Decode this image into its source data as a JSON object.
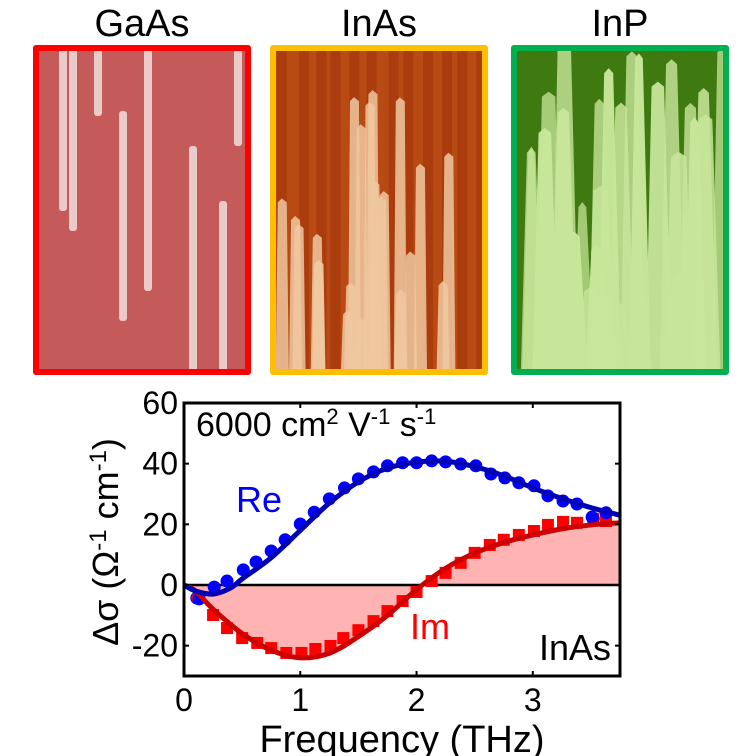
{
  "panels": [
    {
      "label": "GaAs",
      "border_color": "#ff0000",
      "bg_color": "#c45a5a",
      "wire_color": "#f2dede"
    },
    {
      "label": "InAs",
      "border_color": "#ffbf00",
      "bg_color": "#b84a14",
      "wire_color": "#f0c8a0"
    },
    {
      "label": "InP",
      "border_color": "#00b050",
      "bg_color": "#3f7a10",
      "wire_color": "#c8e69a"
    }
  ],
  "chart_data": {
    "type": "line",
    "title": "",
    "xlabel": "Frequency (THz)",
    "ylabel": "Δσ (Ω⁻¹ cm⁻¹)",
    "ylabel_parts": {
      "base": "Δσ (Ω",
      "sup1": "-1",
      "mid": " cm",
      "sup2": "-1",
      "end": ")"
    },
    "xlim": [
      0,
      3.75
    ],
    "ylim": [
      -30,
      60
    ],
    "xticks": [
      0,
      1,
      2,
      3
    ],
    "yticks": [
      -20,
      0,
      20,
      40,
      60
    ],
    "grid": false,
    "annotations": {
      "mobility": {
        "base": "6000 cm",
        "sup1": "2",
        "mid": " V",
        "sup2": "-1",
        "mid2": " s",
        "sup3": "-1"
      },
      "re_label": "Re",
      "im_label": "Im",
      "material_label": "InAs"
    },
    "colors": {
      "re_points": "#0000ff",
      "re_fit": "#0000b4",
      "im_points": "#ff0000",
      "im_fit": "#cc0000",
      "im_fill": "#ffb3b3"
    },
    "series": [
      {
        "name": "Re (data)",
        "marker": "circle",
        "x": [
          0.13,
          0.26,
          0.37,
          0.51,
          0.62,
          0.75,
          0.87,
          1.0,
          1.12,
          1.25,
          1.38,
          1.5,
          1.63,
          1.75,
          1.88,
          2.0,
          2.13,
          2.25,
          2.38,
          2.51,
          2.64,
          2.76,
          2.88,
          3.01,
          3.13,
          3.26,
          3.38,
          3.51,
          3.63
        ],
        "y": [
          -4.6,
          -0.7,
          1.3,
          5.0,
          7.6,
          11.2,
          14.9,
          20.1,
          24.0,
          28.4,
          32.0,
          35.0,
          37.3,
          39.3,
          40.3,
          40.3,
          40.9,
          40.6,
          39.9,
          39.3,
          36.6,
          35.3,
          33.7,
          32.7,
          29.4,
          27.7,
          26.7,
          22.4,
          23.8
        ]
      },
      {
        "name": "Im (data)",
        "marker": "square",
        "x": [
          0.25,
          0.37,
          0.5,
          0.63,
          0.75,
          0.88,
          1.01,
          1.13,
          1.26,
          1.37,
          1.5,
          1.63,
          1.75,
          1.88,
          2.0,
          2.13,
          2.25,
          2.38,
          2.5,
          2.63,
          2.75,
          2.88,
          3.01,
          3.13,
          3.26,
          3.38,
          3.52,
          3.63
        ],
        "y": [
          -9.9,
          -14.2,
          -17.5,
          -19.1,
          -20.8,
          -22.4,
          -22.4,
          -21.1,
          -20.1,
          -17.5,
          -14.9,
          -11.9,
          -8.6,
          -5.3,
          -2.3,
          1.3,
          4.0,
          7.3,
          10.6,
          13.2,
          14.9,
          16.5,
          17.8,
          19.8,
          20.8,
          20.5,
          21.8,
          21.1
        ]
      },
      {
        "name": "Re (fit)",
        "marker": "none",
        "x": [
          0,
          0.1,
          0.25,
          0.4,
          0.5,
          0.75,
          1.0,
          1.25,
          1.5,
          1.75,
          2.0,
          2.25,
          2.5,
          2.75,
          3.0,
          3.25,
          3.5,
          3.75
        ],
        "y": [
          0,
          -2,
          -3,
          -1,
          2,
          9,
          18,
          27,
          34,
          38.5,
          40.5,
          40.8,
          39,
          36,
          32,
          28.5,
          25.5,
          23
        ]
      },
      {
        "name": "Im (fit)",
        "marker": "none",
        "filled": true,
        "x": [
          0,
          0.1,
          0.25,
          0.5,
          0.75,
          1.0,
          1.25,
          1.5,
          1.75,
          2.0,
          2.25,
          2.5,
          2.75,
          3.0,
          3.25,
          3.5,
          3.75
        ],
        "y": [
          0,
          -2,
          -8,
          -16,
          -21.5,
          -24,
          -22.5,
          -17,
          -10,
          -1.5,
          5.5,
          10.5,
          14,
          16.5,
          18.5,
          19.8,
          20.5
        ]
      }
    ],
    "extra_points": [
      {
        "name": "Im (data) low-freq",
        "marker": "circle",
        "x": 0.11,
        "y": -4.3
      },
      {
        "name": "Im (data) high-freq",
        "marker": "circle",
        "x": 3.52,
        "y": 21.8
      }
    ]
  }
}
